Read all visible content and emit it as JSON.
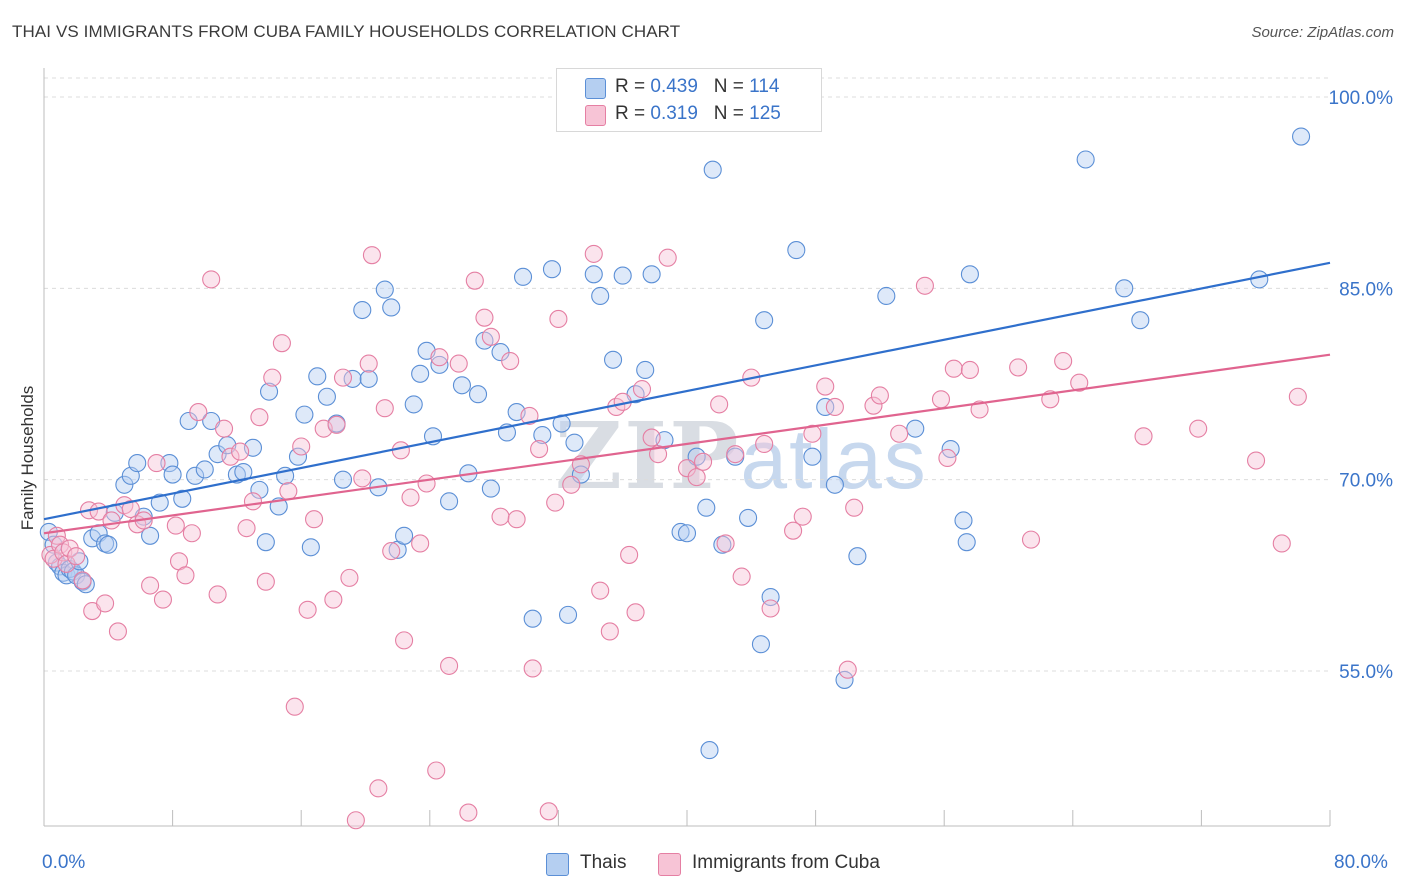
{
  "title": "THAI VS IMMIGRANTS FROM CUBA FAMILY HOUSEHOLDS CORRELATION CHART",
  "source": "Source: ZipAtlas.com",
  "watermark": {
    "part1": "ZIP",
    "part2": "atlas"
  },
  "colors": {
    "thai": "#5b8fd6",
    "thai_fill": "#b5cff1",
    "cuba": "#e57fa3",
    "cuba_fill": "#f7c4d6",
    "axis_text": "#3a74c9",
    "thai_line": "#2f6fcc",
    "cuba_line": "#e0648f"
  },
  "legend": {
    "r_label": "R =",
    "n_label": "N =",
    "thai": {
      "r": "0.439",
      "n": "114"
    },
    "cuba": {
      "r": "0.319",
      "n": "125"
    }
  },
  "bottom_legend": {
    "thai": "Thais",
    "cuba": "Immigrants from Cuba"
  },
  "chart_data": {
    "type": "scatter",
    "title": "THAI VS IMMIGRANTS FROM CUBA FAMILY HOUSEHOLDS CORRELATION CHART",
    "xlabel": "",
    "ylabel": "Family Households",
    "xlim": [
      0,
      80
    ],
    "ylim": [
      40,
      102
    ],
    "x_tick_labels": [
      "0.0%",
      "80.0%"
    ],
    "y_ticks": [
      55,
      70,
      85,
      100
    ],
    "y_tick_labels": [
      "55.0%",
      "70.0%",
      "85.0%",
      "100.0%"
    ],
    "grid": "horizontal dashed",
    "legend_position": "top-center",
    "series": [
      {
        "name": "Thais",
        "trend": {
          "x0": 0,
          "y0": 66.9,
          "x1": 80,
          "y1": 87.0
        },
        "points": [
          [
            0.3,
            65.9
          ],
          [
            0.6,
            64.9
          ],
          [
            0.8,
            63.5
          ],
          [
            1.0,
            63.2
          ],
          [
            1.2,
            62.7
          ],
          [
            1.4,
            62.5
          ],
          [
            1.6,
            63.0
          ],
          [
            1.8,
            62.8
          ],
          [
            2.0,
            62.5
          ],
          [
            2.2,
            63.6
          ],
          [
            2.4,
            62.0
          ],
          [
            2.6,
            61.8
          ],
          [
            3.0,
            65.4
          ],
          [
            3.4,
            65.8
          ],
          [
            3.8,
            65.0
          ],
          [
            4.0,
            64.9
          ],
          [
            4.4,
            67.4
          ],
          [
            5.0,
            69.6
          ],
          [
            5.4,
            70.3
          ],
          [
            5.8,
            71.3
          ],
          [
            6.2,
            67.1
          ],
          [
            6.6,
            65.6
          ],
          [
            7.2,
            68.2
          ],
          [
            7.8,
            71.3
          ],
          [
            8.0,
            70.4
          ],
          [
            8.6,
            68.5
          ],
          [
            9.0,
            74.6
          ],
          [
            9.4,
            70.3
          ],
          [
            10.0,
            70.8
          ],
          [
            10.4,
            74.6
          ],
          [
            10.8,
            72.0
          ],
          [
            11.4,
            72.7
          ],
          [
            12.0,
            70.4
          ],
          [
            12.4,
            70.6
          ],
          [
            13.0,
            72.5
          ],
          [
            13.4,
            69.2
          ],
          [
            13.8,
            65.1
          ],
          [
            14.0,
            76.9
          ],
          [
            14.6,
            67.9
          ],
          [
            15.0,
            70.3
          ],
          [
            15.8,
            71.8
          ],
          [
            16.2,
            75.1
          ],
          [
            16.6,
            64.7
          ],
          [
            17.0,
            78.1
          ],
          [
            17.6,
            76.5
          ],
          [
            18.2,
            74.4
          ],
          [
            18.6,
            70.0
          ],
          [
            19.2,
            77.9
          ],
          [
            19.8,
            83.3
          ],
          [
            20.2,
            77.9
          ],
          [
            20.8,
            69.4
          ],
          [
            21.2,
            84.9
          ],
          [
            21.6,
            83.5
          ],
          [
            22.0,
            64.5
          ],
          [
            22.4,
            65.6
          ],
          [
            23.0,
            75.9
          ],
          [
            23.4,
            78.3
          ],
          [
            23.8,
            80.1
          ],
          [
            24.2,
            73.4
          ],
          [
            24.6,
            79.0
          ],
          [
            25.2,
            68.3
          ],
          [
            26.0,
            77.4
          ],
          [
            26.4,
            70.5
          ],
          [
            27.0,
            76.7
          ],
          [
            27.4,
            80.9
          ],
          [
            27.8,
            69.3
          ],
          [
            28.4,
            80.0
          ],
          [
            28.8,
            73.7
          ],
          [
            29.4,
            75.3
          ],
          [
            29.8,
            85.9
          ],
          [
            30.4,
            59.1
          ],
          [
            31.0,
            73.5
          ],
          [
            31.6,
            86.5
          ],
          [
            32.2,
            74.4
          ],
          [
            32.6,
            59.4
          ],
          [
            33.0,
            72.9
          ],
          [
            33.4,
            70.4
          ],
          [
            34.2,
            86.1
          ],
          [
            34.6,
            84.4
          ],
          [
            35.4,
            79.4
          ],
          [
            36.0,
            86.0
          ],
          [
            36.8,
            76.7
          ],
          [
            37.4,
            78.6
          ],
          [
            37.8,
            86.1
          ],
          [
            38.6,
            73.1
          ],
          [
            39.6,
            65.9
          ],
          [
            40.0,
            65.8
          ],
          [
            40.6,
            71.8
          ],
          [
            41.2,
            67.8
          ],
          [
            41.6,
            94.3
          ],
          [
            42.2,
            64.9
          ],
          [
            43.0,
            71.8
          ],
          [
            43.8,
            67.0
          ],
          [
            44.6,
            57.1
          ],
          [
            44.8,
            82.5
          ],
          [
            45.2,
            60.8
          ],
          [
            46.8,
            88.0
          ],
          [
            47.8,
            71.8
          ],
          [
            48.6,
            75.7
          ],
          [
            49.2,
            69.6
          ],
          [
            49.8,
            54.3
          ],
          [
            50.6,
            64.0
          ],
          [
            52.4,
            84.4
          ],
          [
            54.2,
            74.0
          ],
          [
            56.4,
            72.4
          ],
          [
            57.2,
            66.8
          ],
          [
            57.4,
            65.1
          ],
          [
            57.6,
            86.1
          ],
          [
            64.8,
            95.1
          ],
          [
            67.2,
            85.0
          ],
          [
            68.2,
            82.5
          ],
          [
            75.6,
            85.7
          ],
          [
            78.2,
            96.9
          ],
          [
            41.4,
            48.8
          ]
        ]
      },
      {
        "name": "Immigrants from Cuba",
        "trend": {
          "x0": 0,
          "y0": 65.8,
          "x1": 80,
          "y1": 79.8
        },
        "points": [
          [
            0.4,
            64.1
          ],
          [
            0.6,
            63.8
          ],
          [
            0.8,
            65.6
          ],
          [
            1.0,
            64.9
          ],
          [
            1.2,
            64.3
          ],
          [
            1.4,
            63.4
          ],
          [
            1.6,
            64.6
          ],
          [
            2.0,
            64.0
          ],
          [
            2.4,
            62.1
          ],
          [
            2.8,
            67.6
          ],
          [
            3.0,
            59.7
          ],
          [
            3.4,
            67.5
          ],
          [
            3.8,
            60.3
          ],
          [
            4.2,
            66.8
          ],
          [
            4.6,
            58.1
          ],
          [
            5.0,
            68.0
          ],
          [
            5.4,
            67.7
          ],
          [
            5.8,
            66.5
          ],
          [
            6.2,
            66.8
          ],
          [
            6.6,
            61.7
          ],
          [
            7.0,
            71.3
          ],
          [
            7.4,
            60.6
          ],
          [
            8.2,
            66.4
          ],
          [
            8.4,
            63.6
          ],
          [
            8.8,
            62.5
          ],
          [
            9.2,
            65.8
          ],
          [
            9.6,
            75.3
          ],
          [
            10.4,
            85.7
          ],
          [
            10.8,
            61.0
          ],
          [
            11.2,
            74.0
          ],
          [
            11.6,
            71.8
          ],
          [
            12.2,
            72.2
          ],
          [
            12.6,
            66.2
          ],
          [
            13.0,
            68.3
          ],
          [
            13.4,
            74.9
          ],
          [
            13.8,
            62.0
          ],
          [
            14.2,
            78.0
          ],
          [
            14.8,
            80.7
          ],
          [
            15.2,
            69.1
          ],
          [
            15.6,
            52.2
          ],
          [
            16.0,
            72.6
          ],
          [
            16.4,
            59.8
          ],
          [
            16.8,
            66.9
          ],
          [
            17.4,
            74.0
          ],
          [
            18.0,
            60.6
          ],
          [
            18.2,
            74.3
          ],
          [
            18.6,
            78.0
          ],
          [
            19.0,
            62.3
          ],
          [
            19.4,
            43.3
          ],
          [
            19.8,
            70.1
          ],
          [
            20.4,
            87.6
          ],
          [
            20.8,
            45.8
          ],
          [
            21.2,
            75.6
          ],
          [
            21.6,
            64.4
          ],
          [
            22.2,
            72.3
          ],
          [
            22.4,
            57.4
          ],
          [
            22.8,
            68.6
          ],
          [
            23.4,
            65.0
          ],
          [
            23.8,
            69.7
          ],
          [
            24.4,
            47.2
          ],
          [
            24.6,
            79.6
          ],
          [
            25.2,
            55.4
          ],
          [
            25.8,
            79.1
          ],
          [
            26.4,
            43.9
          ],
          [
            26.8,
            85.6
          ],
          [
            27.4,
            82.7
          ],
          [
            27.8,
            81.2
          ],
          [
            28.4,
            67.1
          ],
          [
            29.0,
            79.3
          ],
          [
            29.4,
            66.9
          ],
          [
            30.2,
            75.0
          ],
          [
            30.4,
            55.2
          ],
          [
            30.8,
            72.4
          ],
          [
            31.4,
            44.0
          ],
          [
            31.8,
            68.2
          ],
          [
            32.0,
            82.6
          ],
          [
            32.8,
            69.6
          ],
          [
            33.4,
            71.2
          ],
          [
            34.2,
            87.7
          ],
          [
            34.6,
            61.3
          ],
          [
            35.2,
            58.1
          ],
          [
            35.6,
            75.7
          ],
          [
            36.0,
            76.1
          ],
          [
            36.4,
            64.1
          ],
          [
            36.8,
            59.6
          ],
          [
            37.2,
            77.1
          ],
          [
            37.8,
            73.3
          ],
          [
            38.2,
            72.0
          ],
          [
            38.8,
            87.4
          ],
          [
            40.0,
            70.9
          ],
          [
            40.6,
            70.2
          ],
          [
            41.0,
            71.4
          ],
          [
            42.0,
            75.9
          ],
          [
            42.4,
            65.0
          ],
          [
            43.0,
            72.0
          ],
          [
            43.4,
            62.4
          ],
          [
            44.0,
            78.0
          ],
          [
            44.8,
            72.8
          ],
          [
            45.2,
            59.9
          ],
          [
            46.6,
            66.0
          ],
          [
            47.2,
            67.1
          ],
          [
            47.8,
            73.6
          ],
          [
            48.6,
            77.3
          ],
          [
            49.2,
            75.7
          ],
          [
            50.0,
            55.1
          ],
          [
            50.4,
            67.8
          ],
          [
            51.6,
            75.8
          ],
          [
            52.0,
            76.6
          ],
          [
            53.2,
            73.6
          ],
          [
            54.8,
            85.2
          ],
          [
            55.8,
            76.3
          ],
          [
            56.2,
            71.7
          ],
          [
            56.6,
            78.7
          ],
          [
            57.6,
            78.6
          ],
          [
            58.2,
            75.5
          ],
          [
            60.6,
            78.8
          ],
          [
            61.4,
            65.3
          ],
          [
            62.6,
            76.3
          ],
          [
            63.4,
            79.3
          ],
          [
            64.4,
            77.6
          ],
          [
            68.4,
            73.4
          ],
          [
            71.8,
            74.0
          ],
          [
            75.4,
            71.5
          ],
          [
            77.0,
            65.0
          ],
          [
            78.0,
            76.5
          ],
          [
            20.2,
            79.1
          ]
        ]
      }
    ]
  }
}
